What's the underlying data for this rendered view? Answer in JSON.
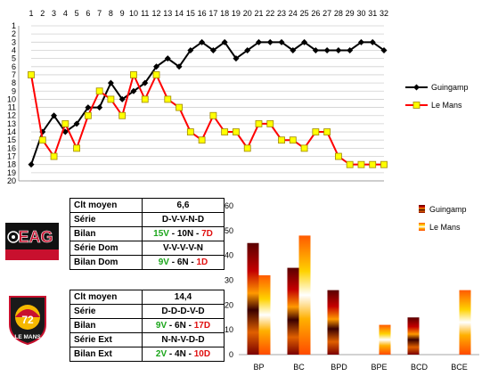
{
  "chart_data": [
    {
      "type": "line",
      "x": [
        1,
        2,
        3,
        4,
        5,
        6,
        7,
        8,
        9,
        10,
        11,
        12,
        13,
        14,
        15,
        16,
        17,
        18,
        19,
        20,
        21,
        22,
        23,
        24,
        25,
        26,
        27,
        28,
        29,
        30,
        31,
        32
      ],
      "xtick_labels": [
        "1",
        "2",
        "3",
        "4",
        "5",
        "6",
        "7",
        "8",
        "9",
        "10",
        "11",
        "12",
        "13",
        "14",
        "15",
        "16",
        "17",
        "18",
        "19",
        "20",
        "21",
        "22",
        "23",
        "24",
        "25",
        "26",
        "27",
        "28",
        "29",
        "30",
        "31",
        "32"
      ],
      "ytick_labels": [
        "1",
        "2",
        "3",
        "4",
        "5",
        "6",
        "7",
        "8",
        "9",
        "10",
        "11",
        "12",
        "13",
        "14",
        "15",
        "16",
        "17",
        "18",
        "19",
        "20"
      ],
      "ylim": [
        1,
        20
      ],
      "y_inverted": true,
      "grid": "horizontal",
      "legend_placement": "right",
      "series": [
        {
          "name": "Guingamp",
          "color": "#000000",
          "marker": "diamond",
          "values": [
            18,
            14,
            12,
            14,
            13,
            11,
            11,
            8,
            10,
            9,
            8,
            6,
            5,
            6,
            4,
            3,
            4,
            3,
            5,
            4,
            3,
            3,
            3,
            4,
            3,
            4,
            4,
            4,
            4,
            3,
            3,
            4
          ]
        },
        {
          "name": "Le Mans",
          "color": "#ff0000",
          "marker": "square",
          "values": [
            7,
            15,
            17,
            13,
            16,
            12,
            9,
            10,
            12,
            7,
            10,
            7,
            10,
            11,
            14,
            15,
            12,
            14,
            14,
            16,
            13,
            13,
            15,
            15,
            16,
            14,
            14,
            17,
            18,
            18,
            18,
            18
          ]
        }
      ]
    },
    {
      "type": "bar",
      "categories": [
        "BP",
        "BC",
        "BPD",
        "BPE",
        "BCD",
        "BCE"
      ],
      "ylim": [
        0,
        60
      ],
      "ytick_labels": [
        "0",
        "10",
        "20",
        "30",
        "40",
        "50",
        "60"
      ],
      "legend_placement": "top-right",
      "series": [
        {
          "name": "Guingamp",
          "color": "#7a0000",
          "values": [
            45,
            35,
            26,
            null,
            15,
            null
          ]
        },
        {
          "name": "Le Mans",
          "color": "#ff9900",
          "values": [
            32,
            48,
            null,
            12,
            null,
            26
          ]
        }
      ]
    }
  ],
  "tables": {
    "guingamp": {
      "logo_text": "EAG",
      "rows": [
        {
          "label": "Clt moyen",
          "value": "6,6"
        },
        {
          "label": "Série",
          "value": "D-V-V-N-D"
        },
        {
          "label": "Bilan",
          "parts": [
            {
              "text": "15V",
              "c": "g"
            },
            {
              "text": " - 10N - ",
              "c": "n"
            },
            {
              "text": "7D",
              "c": "r"
            }
          ]
        },
        {
          "label": "Série Dom",
          "value": "V-V-V-V-N"
        },
        {
          "label": "Bilan Dom",
          "parts": [
            {
              "text": "9V",
              "c": "g"
            },
            {
              "text": " - 6N - ",
              "c": "n"
            },
            {
              "text": "1D",
              "c": "r"
            }
          ]
        }
      ]
    },
    "lemans": {
      "logo_text": "72",
      "logo_caption": "LE MANS",
      "rows": [
        {
          "label": "Clt moyen",
          "value": "14,4"
        },
        {
          "label": "Série",
          "value": "D-D-D-V-D"
        },
        {
          "label": "Bilan",
          "parts": [
            {
              "text": "9V",
              "c": "g"
            },
            {
              "text": " - 6N - ",
              "c": "n"
            },
            {
              "text": "17D",
              "c": "r"
            }
          ]
        },
        {
          "label": "Série Ext",
          "value": "N-N-V-D-D"
        },
        {
          "label": "Bilan Ext",
          "parts": [
            {
              "text": "2V",
              "c": "g"
            },
            {
              "text": " - 4N - ",
              "c": "n"
            },
            {
              "text": "10D",
              "c": "r"
            }
          ]
        }
      ]
    }
  }
}
